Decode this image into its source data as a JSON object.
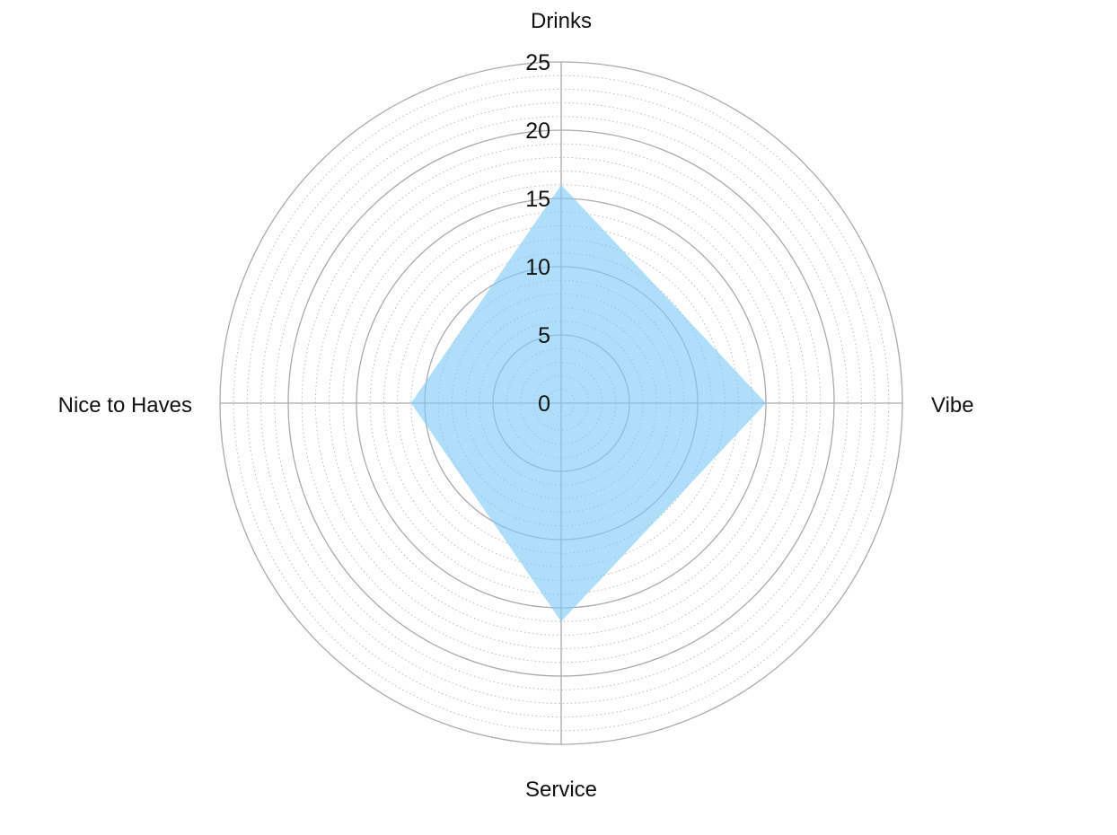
{
  "chart_data": {
    "type": "radar",
    "title": "",
    "axes": [
      "Drinks",
      "Vibe",
      "Service",
      "Nice to Haves"
    ],
    "series": [
      {
        "values": [
          16,
          15,
          16,
          11
        ]
      }
    ],
    "r_range": [
      0,
      25
    ],
    "r_ticks": [
      0,
      5,
      10,
      15,
      20,
      25
    ],
    "minor_tick_step": 1,
    "grid": true,
    "legend": "none",
    "colors": {
      "fill": "#7ec9f7",
      "fill_opacity": 0.62,
      "major_grid": "#aaaaaa",
      "minor_grid": "#bbbbbb",
      "text": "#111111"
    }
  }
}
